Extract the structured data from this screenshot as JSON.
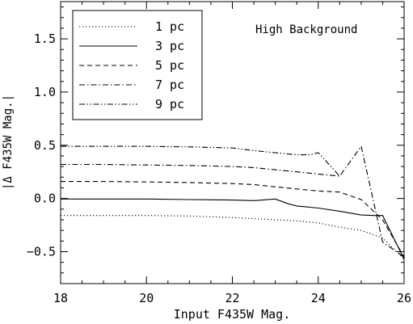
{
  "chart_data": {
    "type": "line",
    "annotation": "High Background",
    "xlabel": "Input F435W Mag.",
    "ylabel": "|Δ F435W Mag.|",
    "xlim": [
      18,
      26
    ],
    "ylim": [
      -0.8,
      1.85
    ],
    "xticks": [
      18,
      20,
      22,
      24,
      26
    ],
    "xtick_labels": [
      "18",
      "20",
      "22",
      "24",
      "26"
    ],
    "yticks": [
      -0.5,
      0.0,
      0.5,
      1.0,
      1.5
    ],
    "ytick_labels": [
      "−0.5",
      "0.0",
      "0.5",
      "1.0",
      "1.5"
    ],
    "legend_position": "top-left",
    "series": [
      {
        "name": "1 pc",
        "dash": "dotted",
        "x": [
          18,
          19,
          20,
          21,
          22,
          22.5,
          23,
          23.5,
          24,
          24.5,
          25,
          25.5,
          26
        ],
        "y": [
          -0.16,
          -0.16,
          -0.16,
          -0.165,
          -0.18,
          -0.19,
          -0.2,
          -0.21,
          -0.23,
          -0.27,
          -0.3,
          -0.37,
          -0.57
        ]
      },
      {
        "name": "3 pc",
        "dash": "solid",
        "x": [
          18,
          19,
          20,
          21,
          22,
          22.5,
          22.7,
          23,
          23.3,
          23.5,
          24,
          24.5,
          25,
          25.3,
          25.5,
          26
        ],
        "y": [
          -0.005,
          -0.005,
          -0.005,
          -0.01,
          -0.015,
          -0.02,
          -0.015,
          -0.005,
          -0.05,
          -0.07,
          -0.09,
          -0.12,
          -0.155,
          -0.16,
          -0.16,
          -0.57
        ]
      },
      {
        "name": "5 pc",
        "dash": "dashed",
        "x": [
          18,
          19,
          20,
          21,
          22,
          22.5,
          23,
          23.5,
          24,
          24.5,
          25,
          25.5,
          26
        ],
        "y": [
          0.16,
          0.16,
          0.155,
          0.15,
          0.14,
          0.13,
          0.11,
          0.09,
          0.07,
          0.06,
          -0.01,
          -0.2,
          -0.55
        ]
      },
      {
        "name": "7 pc",
        "dash": "dash-dot",
        "x": [
          18,
          19,
          20,
          21,
          22,
          22.5,
          23,
          23.5,
          24,
          24.5,
          25,
          25.5,
          26
        ],
        "y": [
          0.32,
          0.32,
          0.315,
          0.31,
          0.3,
          0.29,
          0.27,
          0.25,
          0.23,
          0.21,
          0.49,
          -0.41,
          -0.55
        ]
      },
      {
        "name": "9 pc",
        "dash": "dash-dot-dot",
        "x": [
          18,
          19,
          20,
          21,
          22,
          22.5,
          23,
          23.5,
          23.8,
          24,
          24.5
        ],
        "y": [
          0.49,
          0.49,
          0.49,
          0.485,
          0.475,
          0.45,
          0.43,
          0.41,
          0.41,
          0.43,
          0.21
        ]
      }
    ]
  }
}
